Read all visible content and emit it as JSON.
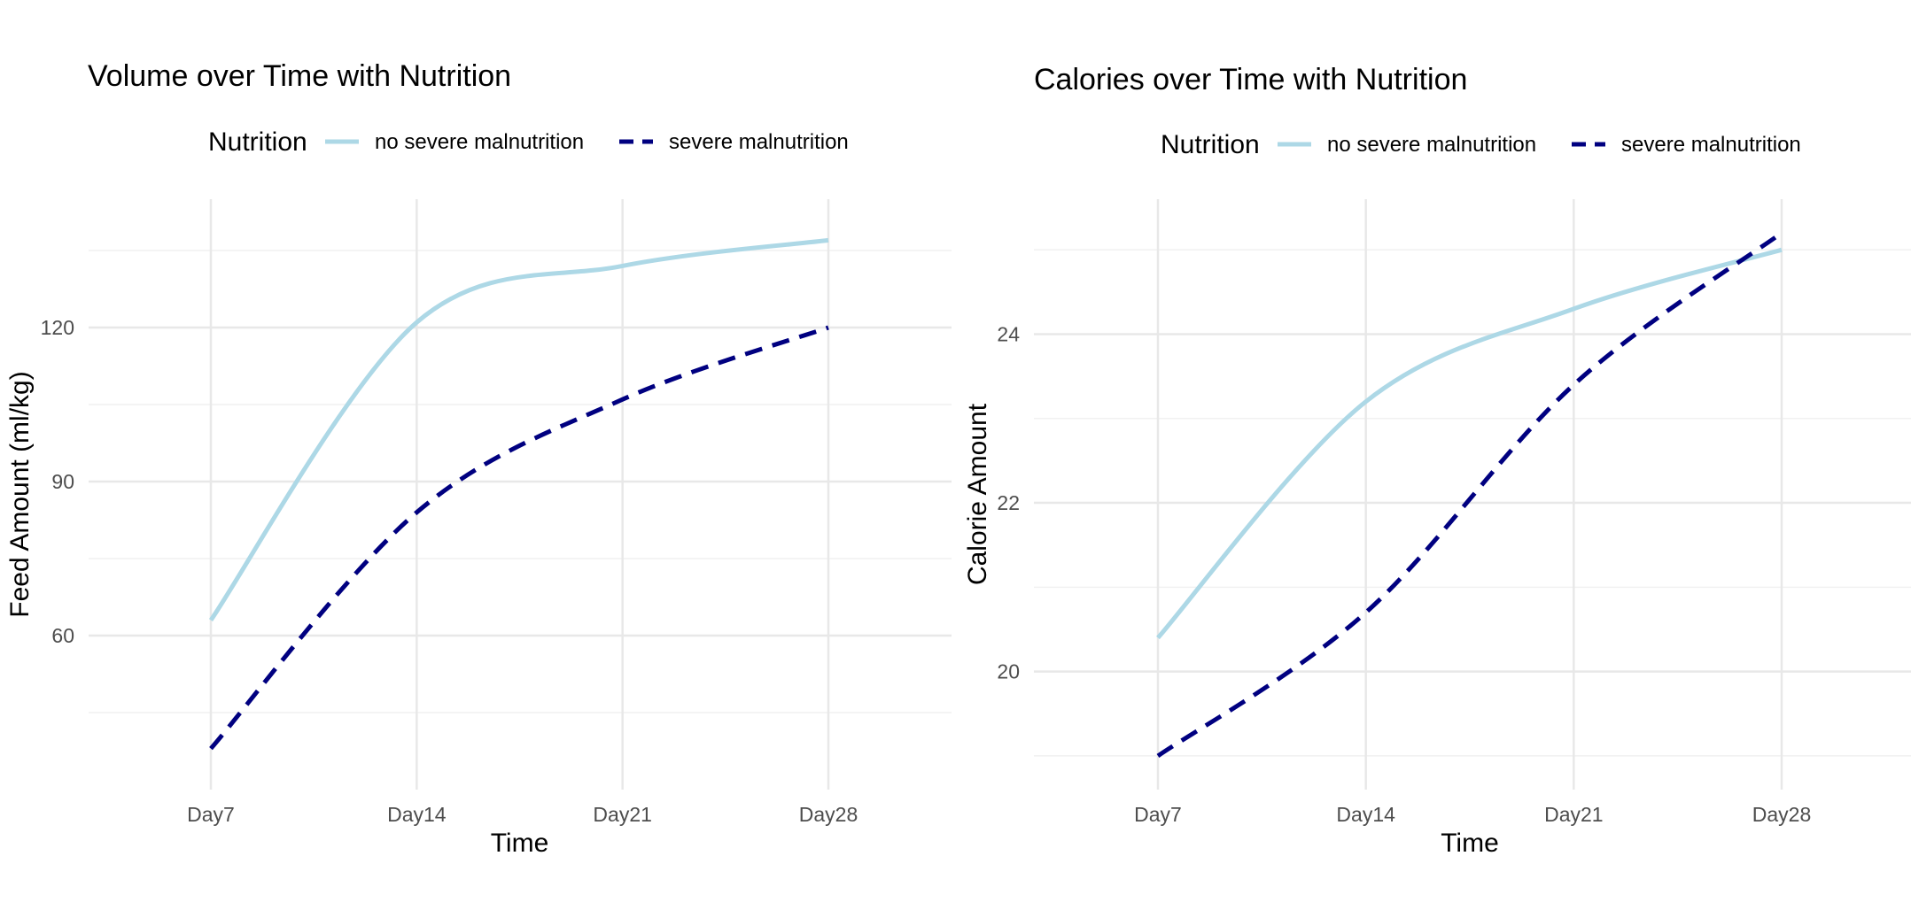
{
  "chart_data": [
    {
      "type": "line",
      "title": "Volume over Time with Nutrition",
      "xlabel": "Time",
      "ylabel": "Feed Amount (ml/kg)",
      "categories": [
        "Day7",
        "Day14",
        "Day21",
        "Day28"
      ],
      "yticks": [
        60,
        90,
        120
      ],
      "ylim": [
        30,
        145
      ],
      "grid": true,
      "legend": {
        "title": "Nutrition",
        "position": "top"
      },
      "series": [
        {
          "name": "no severe malnutrition",
          "values": [
            63,
            121,
            132,
            137
          ],
          "color": "#add8e6",
          "style": "solid"
        },
        {
          "name": "severe malnutrition",
          "values": [
            38,
            84,
            106,
            120
          ],
          "color": "#000080",
          "style": "dashed"
        }
      ]
    },
    {
      "type": "line",
      "title": "Calories over Time with Nutrition",
      "xlabel": "Time",
      "ylabel": "Calorie Amount",
      "categories": [
        "Day7",
        "Day14",
        "Day21",
        "Day28"
      ],
      "yticks": [
        20,
        22,
        24
      ],
      "ylim": [
        18.6,
        25.6
      ],
      "grid": true,
      "legend": {
        "title": "Nutrition",
        "position": "top"
      },
      "series": [
        {
          "name": "no severe malnutrition",
          "values": [
            20.4,
            23.2,
            24.3,
            25.0
          ],
          "color": "#add8e6",
          "style": "solid"
        },
        {
          "name": "severe malnutrition",
          "values": [
            19.0,
            20.7,
            23.4,
            25.2
          ],
          "color": "#000080",
          "style": "dashed"
        }
      ]
    }
  ]
}
